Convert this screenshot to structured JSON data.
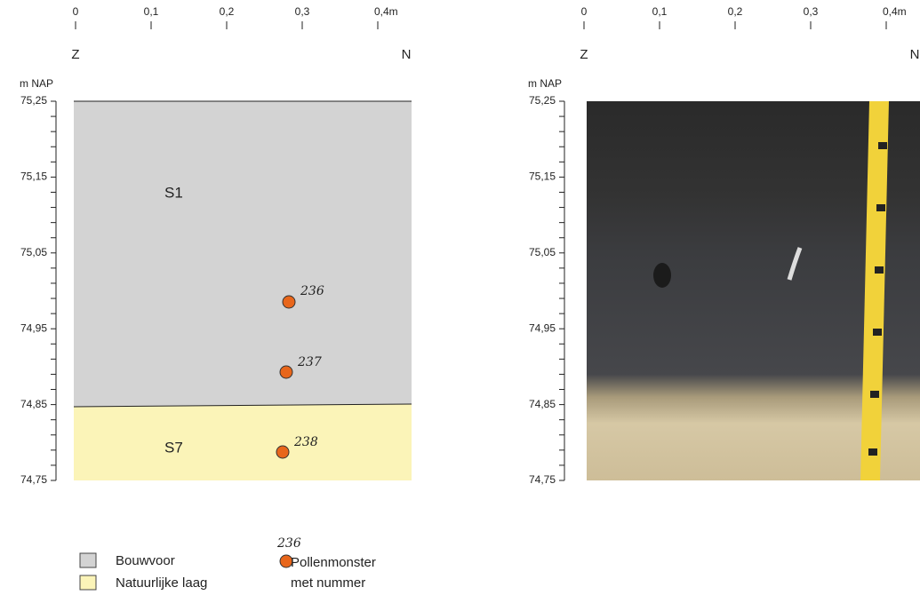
{
  "panels": [
    {
      "scale": [
        "0",
        "0,1",
        "0,2",
        "0,3",
        "0,4m"
      ],
      "left": "Z",
      "right": "N",
      "unit": "m NAP",
      "levels": [
        "75,25",
        "75,15",
        "75,05",
        "74,95",
        "74,85",
        "74,75"
      ],
      "layers": [
        "S1",
        "S7"
      ],
      "samples": [
        "236",
        "237",
        "238"
      ]
    },
    {
      "scale": [
        "0",
        "0,1",
        "0,2",
        "0,3",
        "0,4m"
      ],
      "left": "Z",
      "right": "N",
      "unit": "m NAP",
      "levels": [
        "75,25",
        "75,15",
        "75,05",
        "74,95",
        "74,85",
        "74,75"
      ]
    }
  ],
  "legend": {
    "items": [
      "Bouwvoor",
      "Natuurlijke laag"
    ],
    "sample_number": "236",
    "sample_text": [
      "Pollenmonster",
      "met nummer"
    ]
  }
}
